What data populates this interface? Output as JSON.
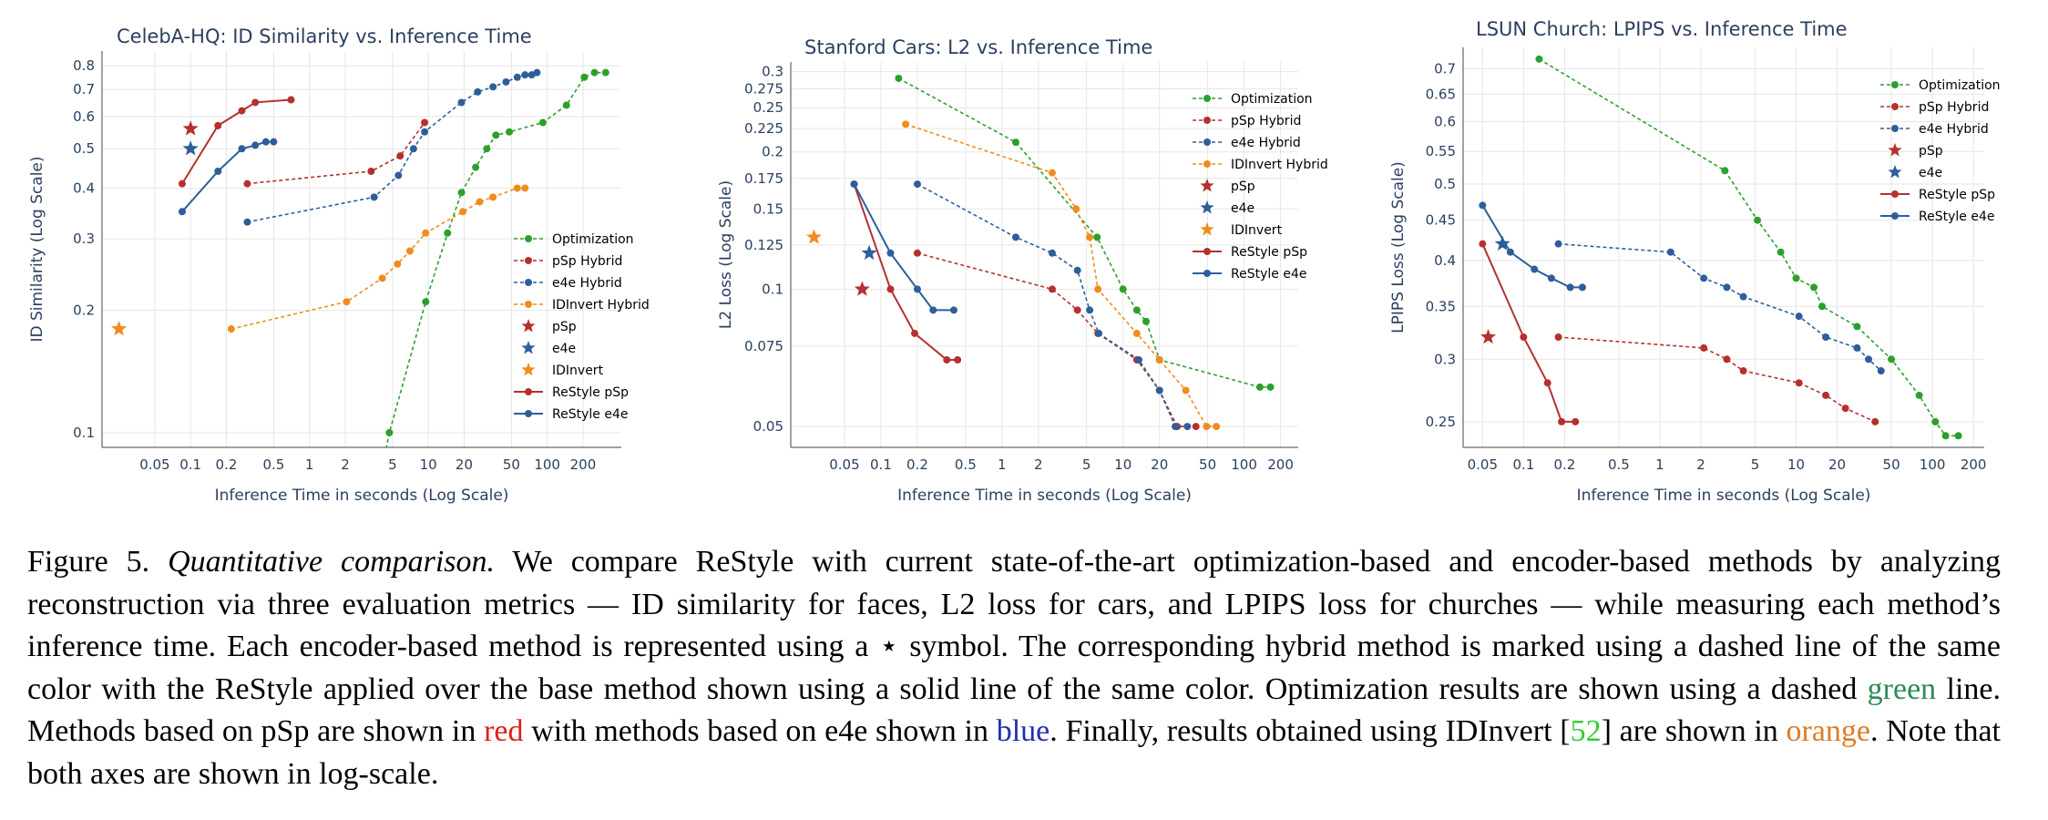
{
  "figure_caption": {
    "label": "Figure 5.",
    "title": "Quantitative comparison.",
    "t1": " We compare ReStyle with current state-of-the-art optimization-based and encoder-based methods by analyzing reconstruction via three evaluation metrics — ID similarity for faces, L2 loss for cars, and LPIPS loss for churches — while measuring each method’s inference time. Each encoder-based method is represented using a ⋆ symbol. The corresponding hybrid method is marked using a dashed line of the same color with the ReStyle applied over the base method shown using a solid line of the same color. Optimization results are shown using a dashed ",
    "green": "green",
    "t2": " line. Methods based on pSp are shown in ",
    "red": "red",
    "t3": " with methods based on e4e shown in ",
    "blue": "blue",
    "t4": ". Finally, results obtained using IDInvert [",
    "cite": "52",
    "t5": "] are shown in ",
    "orange": "orange",
    "t6": ". Note that both axes are shown in log-scale."
  },
  "colors": {
    "Optimization": "#2ca02c",
    "pSp": "#b5302f",
    "e4e": "#2e5e9a",
    "IDInvert": "#f08c1c",
    "text": "#2a3f5f",
    "grid": "#e6e6e6"
  },
  "chart_data": [
    {
      "type": "scatter",
      "title": "CelebA-HQ: ID Similarity vs. Inference Time",
      "xlabel": "Inference Time in seconds (Log Scale)",
      "ylabel": "ID Similarity (Log Scale)",
      "x_scale": "log",
      "y_scale": "log",
      "xlim": [
        0.018,
        420
      ],
      "ylim": [
        0.092,
        0.87
      ],
      "x_ticks": [
        0.05,
        0.1,
        0.2,
        0.5,
        1,
        2,
        5,
        10,
        20,
        50,
        100,
        200
      ],
      "x_tick_labels": [
        "0.05",
        "0.1",
        "0.2",
        "0.5",
        "1",
        "2",
        "5",
        "10",
        "20",
        "50",
        "100",
        "200"
      ],
      "y_ticks": [
        0.1,
        0.2,
        0.3,
        0.4,
        0.5,
        0.6,
        0.7,
        0.8
      ],
      "y_tick_labels": [
        "0.1",
        "0.2",
        "0.3",
        "0.4",
        "0.5",
        "0.6",
        "0.7",
        "0.8"
      ],
      "grid": true,
      "legend_position": "right",
      "series": [
        {
          "name": "Optimization",
          "style": "dashed",
          "color": "#2ca02c",
          "points": [
            [
              4.2,
              0.085
            ],
            [
              4.7,
              0.1
            ],
            [
              9.5,
              0.21
            ],
            [
              14.5,
              0.31
            ],
            [
              19,
              0.39
            ],
            [
              25,
              0.45
            ],
            [
              31,
              0.5
            ],
            [
              37,
              0.54
            ],
            [
              48,
              0.55
            ],
            [
              92,
              0.58
            ],
            [
              145,
              0.64
            ],
            [
              205,
              0.75
            ],
            [
              250,
              0.77
            ],
            [
              310,
              0.77
            ]
          ]
        },
        {
          "name": "pSp Hybrid",
          "style": "dashed",
          "color": "#b5302f",
          "points": [
            [
              0.3,
              0.41
            ],
            [
              3.3,
              0.44
            ],
            [
              5.8,
              0.48
            ],
            [
              9.3,
              0.58
            ]
          ]
        },
        {
          "name": "e4e Hybrid",
          "style": "dashed",
          "color": "#2e5e9a",
          "points": [
            [
              0.3,
              0.33
            ],
            [
              3.5,
              0.38
            ],
            [
              5.6,
              0.43
            ],
            [
              7.5,
              0.5
            ],
            [
              9.3,
              0.55
            ],
            [
              19,
              0.65
            ],
            [
              26,
              0.69
            ],
            [
              35,
              0.71
            ],
            [
              45,
              0.73
            ],
            [
              56,
              0.75
            ],
            [
              65,
              0.76
            ],
            [
              74,
              0.76
            ],
            [
              82,
              0.77
            ]
          ]
        },
        {
          "name": "IDInvert Hybrid",
          "style": "dashed",
          "color": "#f08c1c",
          "points": [
            [
              0.22,
              0.18
            ],
            [
              2.05,
              0.21
            ],
            [
              4.1,
              0.24
            ],
            [
              5.5,
              0.26
            ],
            [
              7,
              0.28
            ],
            [
              9.5,
              0.31
            ],
            [
              19.5,
              0.35
            ],
            [
              27,
              0.37
            ],
            [
              35,
              0.38
            ],
            [
              56,
              0.4
            ],
            [
              65,
              0.4
            ]
          ]
        },
        {
          "name": "pSp",
          "style": "star",
          "color": "#b5302f",
          "points": [
            [
              0.1,
              0.56
            ]
          ]
        },
        {
          "name": "e4e",
          "style": "star",
          "color": "#2e5e9a",
          "points": [
            [
              0.1,
              0.5
            ]
          ]
        },
        {
          "name": "IDInvert",
          "style": "star",
          "color": "#f08c1c",
          "points": [
            [
              0.025,
              0.18
            ]
          ]
        },
        {
          "name": "ReStyle pSp",
          "style": "solid",
          "color": "#b5302f",
          "points": [
            [
              0.085,
              0.41
            ],
            [
              0.17,
              0.57
            ],
            [
              0.27,
              0.62
            ],
            [
              0.35,
              0.65
            ],
            [
              0.7,
              0.66
            ]
          ]
        },
        {
          "name": "ReStyle e4e",
          "style": "solid",
          "color": "#2e5e9a",
          "points": [
            [
              0.085,
              0.35
            ],
            [
              0.17,
              0.44
            ],
            [
              0.27,
              0.5
            ],
            [
              0.35,
              0.51
            ],
            [
              0.43,
              0.52
            ],
            [
              0.5,
              0.52
            ]
          ]
        }
      ]
    },
    {
      "type": "scatter",
      "title": "Stanford Cars: L2 vs. Inference Time",
      "xlabel": "Inference Time in seconds (Log Scale)",
      "ylabel": "L2 Loss (Log Scale)",
      "x_scale": "log",
      "y_scale": "log",
      "xlim": [
        0.018,
        280
      ],
      "ylim": [
        0.045,
        0.315
      ],
      "x_ticks": [
        0.05,
        0.1,
        0.2,
        0.5,
        1,
        2,
        5,
        10,
        20,
        50,
        100,
        200
      ],
      "x_tick_labels": [
        "0.05",
        "0.1",
        "0.2",
        "0.5",
        "1",
        "2",
        "5",
        "10",
        "20",
        "50",
        "100",
        "200"
      ],
      "y_ticks": [
        0.05,
        0.075,
        0.1,
        0.125,
        0.15,
        0.175,
        0.2,
        0.225,
        0.25,
        0.275,
        0.3
      ],
      "y_tick_labels": [
        "0.05",
        "0.075",
        "0.1",
        "0.125",
        "0.15",
        "0.175",
        "0.2",
        "0.225",
        "0.25",
        "0.275",
        "0.3"
      ],
      "grid": true,
      "legend_position": "top-right",
      "series": [
        {
          "name": "Optimization",
          "style": "dashed",
          "color": "#2ca02c",
          "points": [
            [
              0.14,
              0.29
            ],
            [
              1.3,
              0.21
            ],
            [
              6.1,
              0.13
            ],
            [
              10,
              0.1
            ],
            [
              13,
              0.09
            ],
            [
              15.5,
              0.085
            ],
            [
              20,
              0.07
            ],
            [
              135,
              0.061
            ],
            [
              165,
              0.061
            ]
          ]
        },
        {
          "name": "pSp Hybrid",
          "style": "dashed",
          "color": "#b5302f",
          "points": [
            [
              0.2,
              0.12
            ],
            [
              2.6,
              0.1
            ],
            [
              4.2,
              0.09
            ],
            [
              6.2,
              0.08
            ],
            [
              13,
              0.07
            ],
            [
              20,
              0.06
            ],
            [
              28,
              0.05
            ],
            [
              40,
              0.05
            ]
          ]
        },
        {
          "name": "e4e Hybrid",
          "style": "dashed",
          "color": "#2e5e9a",
          "points": [
            [
              0.2,
              0.17
            ],
            [
              1.3,
              0.13
            ],
            [
              2.6,
              0.12
            ],
            [
              4.2,
              0.11
            ],
            [
              5.3,
              0.09
            ],
            [
              6.3,
              0.08
            ],
            [
              13.5,
              0.07
            ],
            [
              20,
              0.06
            ],
            [
              27,
              0.05
            ],
            [
              34,
              0.05
            ]
          ]
        },
        {
          "name": "IDInvert Hybrid",
          "style": "dashed",
          "color": "#f08c1c",
          "points": [
            [
              0.16,
              0.23
            ],
            [
              2.6,
              0.18
            ],
            [
              4.1,
              0.15
            ],
            [
              5.3,
              0.13
            ],
            [
              6.2,
              0.1
            ],
            [
              13,
              0.08
            ],
            [
              20,
              0.07
            ],
            [
              33,
              0.06
            ],
            [
              49,
              0.05
            ],
            [
              59,
              0.05
            ]
          ]
        },
        {
          "name": "pSp",
          "style": "star",
          "color": "#b5302f",
          "points": [
            [
              0.07,
              0.1
            ]
          ]
        },
        {
          "name": "e4e",
          "style": "star",
          "color": "#2e5e9a",
          "points": [
            [
              0.08,
              0.12
            ]
          ]
        },
        {
          "name": "IDInvert",
          "style": "star",
          "color": "#f08c1c",
          "points": [
            [
              0.028,
              0.13
            ]
          ]
        },
        {
          "name": "ReStyle pSp",
          "style": "solid",
          "color": "#b5302f",
          "points": [
            [
              0.06,
              0.17
            ],
            [
              0.12,
              0.1
            ],
            [
              0.19,
              0.08
            ],
            [
              0.35,
              0.07
            ],
            [
              0.43,
              0.07
            ]
          ]
        },
        {
          "name": "ReStyle e4e",
          "style": "solid",
          "color": "#2e5e9a",
          "points": [
            [
              0.06,
              0.17
            ],
            [
              0.12,
              0.12
            ],
            [
              0.2,
              0.1
            ],
            [
              0.27,
              0.09
            ],
            [
              0.4,
              0.09
            ]
          ]
        }
      ]
    },
    {
      "type": "scatter",
      "title": "LSUN Church: LPIPS vs. Inference Time",
      "xlabel": "Inference Time in seconds (Log Scale)",
      "ylabel": "LPIPS Loss (Log Scale)",
      "x_scale": "log",
      "y_scale": "log",
      "xlim": [
        0.036,
        240
      ],
      "ylim": [
        0.232,
        0.745
      ],
      "x_ticks": [
        0.05,
        0.1,
        0.2,
        0.5,
        1,
        2,
        5,
        10,
        20,
        50,
        100,
        200
      ],
      "x_tick_labels": [
        "0.05",
        "0.1",
        "0.2",
        "0.5",
        "1",
        "2",
        "5",
        "10",
        "20",
        "50",
        "100",
        "200"
      ],
      "y_ticks": [
        0.25,
        0.3,
        0.35,
        0.4,
        0.45,
        0.5,
        0.55,
        0.6,
        0.65,
        0.7
      ],
      "y_tick_labels": [
        "0.25",
        "0.3",
        "0.35",
        "0.4",
        "0.45",
        "0.5",
        "0.55",
        "0.6",
        "0.65",
        "0.7"
      ],
      "grid": true,
      "legend_position": "top-right",
      "series": [
        {
          "name": "Optimization",
          "style": "dashed",
          "color": "#2ca02c",
          "points": [
            [
              0.13,
              0.72
            ],
            [
              3,
              0.52
            ],
            [
              5.2,
              0.45
            ],
            [
              7.7,
              0.41
            ],
            [
              10,
              0.38
            ],
            [
              13.5,
              0.37
            ],
            [
              15.5,
              0.35
            ],
            [
              28,
              0.33
            ],
            [
              50,
              0.3
            ],
            [
              80,
              0.27
            ],
            [
              105,
              0.25
            ],
            [
              125,
              0.24
            ],
            [
              155,
              0.24
            ]
          ]
        },
        {
          "name": "pSp Hybrid",
          "style": "dashed",
          "color": "#b5302f",
          "points": [
            [
              0.18,
              0.32
            ],
            [
              2.1,
              0.31
            ],
            [
              3.1,
              0.3
            ],
            [
              4.1,
              0.29
            ],
            [
              10.5,
              0.28
            ],
            [
              16.5,
              0.27
            ],
            [
              23,
              0.26
            ],
            [
              38,
              0.25
            ]
          ]
        },
        {
          "name": "e4e Hybrid",
          "style": "dashed",
          "color": "#2e5e9a",
          "points": [
            [
              0.18,
              0.42
            ],
            [
              1.2,
              0.41
            ],
            [
              2.1,
              0.38
            ],
            [
              3.1,
              0.37
            ],
            [
              4.1,
              0.36
            ],
            [
              10.5,
              0.34
            ],
            [
              16.5,
              0.32
            ],
            [
              28,
              0.31
            ],
            [
              34,
              0.3
            ],
            [
              42,
              0.29
            ]
          ]
        },
        {
          "name": "pSp",
          "style": "star",
          "color": "#b5302f",
          "points": [
            [
              0.055,
              0.32
            ]
          ]
        },
        {
          "name": "e4e",
          "style": "star",
          "color": "#2e5e9a",
          "points": [
            [
              0.07,
              0.42
            ]
          ]
        },
        {
          "name": "ReStyle pSp",
          "style": "solid",
          "color": "#b5302f",
          "points": [
            [
              0.05,
              0.42
            ],
            [
              0.1,
              0.32
            ],
            [
              0.15,
              0.28
            ],
            [
              0.19,
              0.25
            ],
            [
              0.24,
              0.25
            ]
          ]
        },
        {
          "name": "ReStyle e4e",
          "style": "solid",
          "color": "#2e5e9a",
          "points": [
            [
              0.05,
              0.47
            ],
            [
              0.08,
              0.41
            ],
            [
              0.12,
              0.39
            ],
            [
              0.16,
              0.38
            ],
            [
              0.22,
              0.37
            ],
            [
              0.27,
              0.37
            ]
          ]
        }
      ]
    }
  ]
}
